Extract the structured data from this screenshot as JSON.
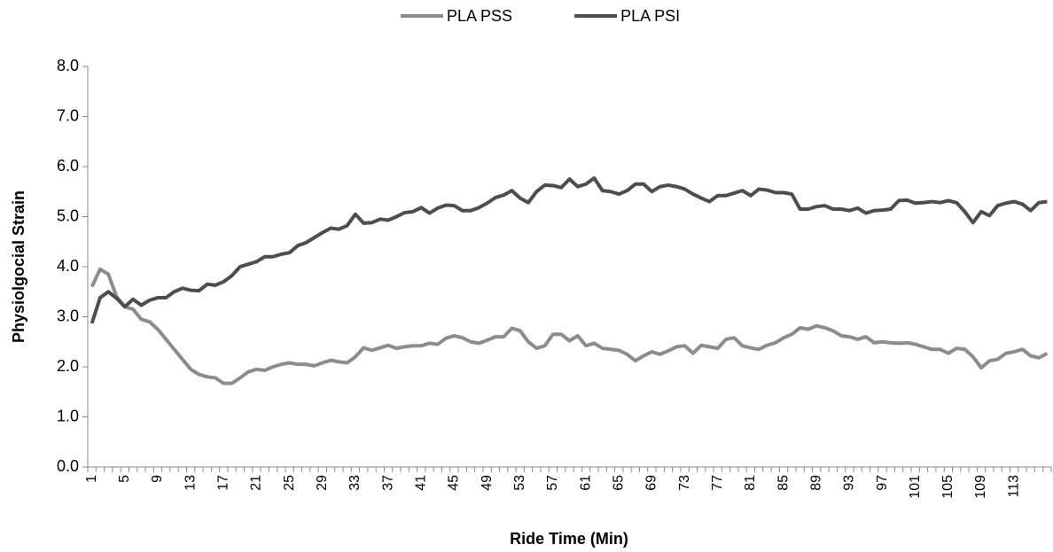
{
  "chart_data": {
    "type": "line",
    "x_label": "Ride Time (Min)",
    "y_label": "Physiolgocial Strain",
    "legend": "top",
    "categories": [
      "1",
      null,
      null,
      null,
      "5",
      null,
      null,
      null,
      "9",
      null,
      null,
      null,
      "13",
      null,
      null,
      null,
      "17",
      null,
      null,
      null,
      "21",
      null,
      null,
      null,
      "25",
      null,
      null,
      null,
      "29",
      null,
      null,
      null,
      "33",
      null,
      null,
      null,
      "37",
      null,
      null,
      null,
      "41",
      null,
      null,
      null,
      "45",
      null,
      null,
      null,
      "49",
      null,
      null,
      null,
      "53",
      null,
      null,
      null,
      "57",
      null,
      null,
      null,
      "61",
      null,
      null,
      null,
      "65",
      null,
      null,
      null,
      "69",
      null,
      null,
      null,
      "73",
      null,
      null,
      null,
      "77",
      null,
      null,
      null,
      "81",
      null,
      null,
      null,
      "85",
      null,
      null,
      null,
      "89",
      null,
      null,
      null,
      "93",
      null,
      null,
      null,
      "97",
      null,
      null,
      null,
      "101",
      null,
      null,
      null,
      "105",
      null,
      null,
      null,
      "109",
      null,
      null,
      null,
      "113",
      null,
      null,
      null,
      null
    ],
    "series": [
      {
        "name": "PLA PSS",
        "color": "#8c8c8c",
        "values": [
          3.6,
          3.95,
          3.85,
          3.4,
          3.2,
          3.15,
          2.95,
          2.9,
          2.75,
          2.55,
          2.35,
          2.15,
          1.95,
          1.85,
          1.8,
          1.78,
          1.67,
          1.67,
          1.78,
          1.9,
          1.95,
          1.93,
          2.0,
          2.05,
          2.08,
          2.05,
          2.05,
          2.02,
          2.08,
          2.13,
          2.1,
          2.08,
          2.2,
          2.38,
          2.33,
          2.38,
          2.43,
          2.37,
          2.4,
          2.42,
          2.42,
          2.47,
          2.45,
          2.57,
          2.62,
          2.58,
          2.5,
          2.47,
          2.53,
          2.6,
          2.6,
          2.77,
          2.72,
          2.5,
          2.37,
          2.42,
          2.65,
          2.65,
          2.52,
          2.62,
          2.42,
          2.47,
          2.37,
          2.35,
          2.33,
          2.25,
          2.12,
          2.22,
          2.3,
          2.25,
          2.32,
          2.4,
          2.42,
          2.27,
          2.43,
          2.4,
          2.37,
          2.55,
          2.58,
          2.42,
          2.38,
          2.35,
          2.43,
          2.48,
          2.58,
          2.65,
          2.78,
          2.75,
          2.82,
          2.78,
          2.72,
          2.62,
          2.6,
          2.55,
          2.6,
          2.48,
          2.5,
          2.48,
          2.47,
          2.48,
          2.45,
          2.4,
          2.35,
          2.35,
          2.27,
          2.37,
          2.35,
          2.2,
          1.98,
          2.12,
          2.15,
          2.27,
          2.3,
          2.35,
          2.22,
          2.18,
          2.27
        ]
      },
      {
        "name": "PLA PSI",
        "color": "#4d4d4d",
        "values": [
          2.87,
          3.38,
          3.5,
          3.37,
          3.2,
          3.35,
          3.23,
          3.33,
          3.38,
          3.38,
          3.5,
          3.57,
          3.53,
          3.52,
          3.65,
          3.63,
          3.7,
          3.82,
          4.0,
          4.05,
          4.1,
          4.2,
          4.2,
          4.25,
          4.28,
          4.42,
          4.48,
          4.58,
          4.68,
          4.77,
          4.75,
          4.82,
          5.05,
          4.87,
          4.88,
          4.95,
          4.93,
          5.0,
          5.08,
          5.1,
          5.18,
          5.07,
          5.17,
          5.23,
          5.22,
          5.12,
          5.12,
          5.18,
          5.27,
          5.38,
          5.43,
          5.52,
          5.37,
          5.28,
          5.5,
          5.63,
          5.62,
          5.58,
          5.75,
          5.6,
          5.65,
          5.77,
          5.52,
          5.5,
          5.45,
          5.52,
          5.65,
          5.65,
          5.5,
          5.6,
          5.63,
          5.6,
          5.55,
          5.45,
          5.37,
          5.3,
          5.42,
          5.42,
          5.47,
          5.52,
          5.42,
          5.55,
          5.53,
          5.48,
          5.48,
          5.45,
          5.15,
          5.15,
          5.2,
          5.22,
          5.15,
          5.15,
          5.12,
          5.17,
          5.07,
          5.12,
          5.13,
          5.15,
          5.32,
          5.33,
          5.27,
          5.28,
          5.3,
          5.28,
          5.32,
          5.28,
          5.1,
          4.88,
          5.1,
          5.02,
          5.22,
          5.27,
          5.3,
          5.25,
          5.12,
          5.28,
          5.3
        ]
      }
    ],
    "ylim": [
      0,
      8
    ],
    "yticks": [
      {
        "value": 0,
        "label": "0.0"
      },
      {
        "value": 1,
        "label": "1.0"
      },
      {
        "value": 2,
        "label": "2.0"
      },
      {
        "value": 3,
        "label": "3.0"
      },
      {
        "value": 4,
        "label": "4.0"
      },
      {
        "value": 5,
        "label": "5.0"
      },
      {
        "value": 6,
        "label": "6.0"
      },
      {
        "value": 7,
        "label": "7.0"
      },
      {
        "value": 8,
        "label": "8.0"
      }
    ]
  }
}
